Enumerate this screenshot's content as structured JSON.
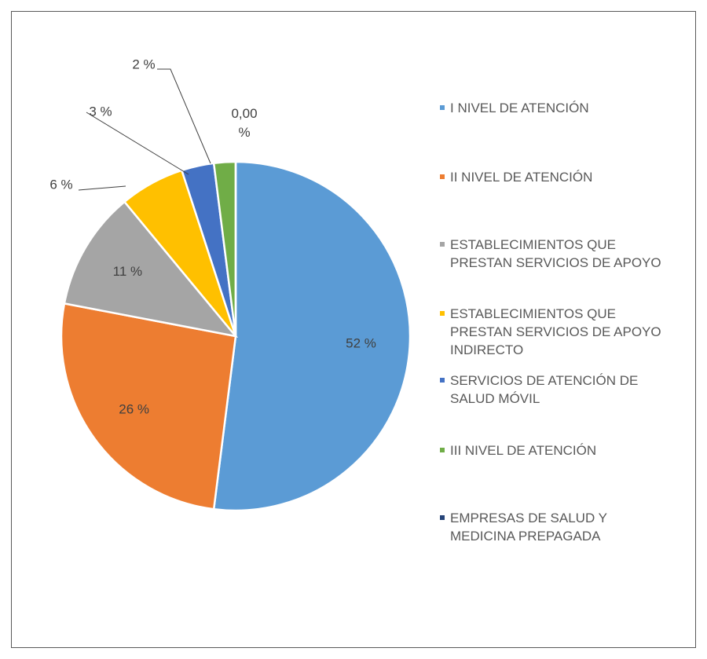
{
  "chart_data": {
    "type": "pie",
    "categories": [
      "I NIVEL DE ATENCIÓN",
      "II NIVEL DE ATENCIÓN",
      "ESTABLECIMIENTOS QUE PRESTAN SERVICIOS DE APOYO",
      "ESTABLECIMIENTOS QUE PRESTAN SERVICIOS DE APOYO INDIRECTO",
      "SERVICIOS DE ATENCIÓN DE SALUD MÓVIL",
      "III NIVEL DE ATENCIÓN",
      "EMPRESAS DE SALUD Y MEDICINA PREPAGADA"
    ],
    "values": [
      52,
      26,
      11,
      6,
      3,
      2,
      0
    ],
    "value_labels": [
      "52 %",
      "26 %",
      "11 %",
      "6 %",
      "3 %",
      "2 %",
      "0,00 %"
    ],
    "colors": [
      "#5b9bd5",
      "#ed7d31",
      "#a5a5a5",
      "#ffc000",
      "#4472c4",
      "#70ad47",
      "#264478"
    ],
    "legend": "right"
  }
}
